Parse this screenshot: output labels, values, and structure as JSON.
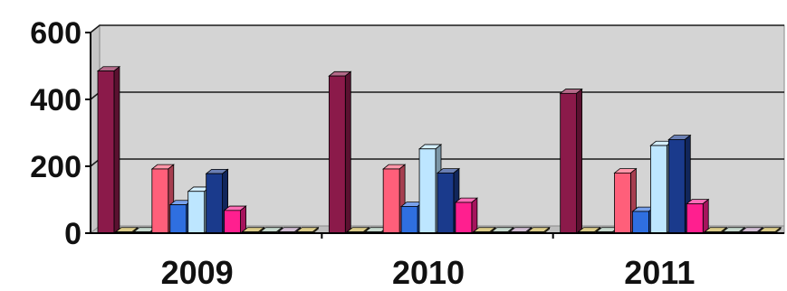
{
  "chart_data": {
    "type": "bar",
    "categories": [
      "2009",
      "2010",
      "2011"
    ],
    "ylim": [
      0,
      600
    ],
    "yticks": [
      0,
      200,
      400,
      600
    ],
    "grid": true,
    "style": "3d-clustered",
    "series": [
      {
        "color": "#8b1a4a",
        "values": [
          485,
          470,
          418
        ]
      },
      {
        "color": "#c8b04a",
        "values": [
          4,
          4,
          4
        ]
      },
      {
        "color": "#a7c4b4",
        "values": [
          4,
          4,
          4
        ]
      },
      {
        "color": "#ff5f7a",
        "values": [
          192,
          192,
          180
        ]
      },
      {
        "color": "#2f6fe0",
        "values": [
          85,
          80,
          65
        ]
      },
      {
        "color": "#bde6ff",
        "values": [
          125,
          252,
          262
        ]
      },
      {
        "color": "#1a3a8c",
        "values": [
          178,
          180,
          280
        ]
      },
      {
        "color": "#ff1f8f",
        "values": [
          68,
          92,
          88
        ]
      },
      {
        "color": "#c8b04a",
        "values": [
          4,
          4,
          4
        ]
      },
      {
        "color": "#a7c4b4",
        "values": [
          4,
          4,
          4
        ]
      },
      {
        "color": "#b89abc",
        "values": [
          4,
          4,
          4
        ]
      },
      {
        "color": "#c8b04a",
        "values": [
          4,
          4,
          4
        ]
      }
    ]
  }
}
